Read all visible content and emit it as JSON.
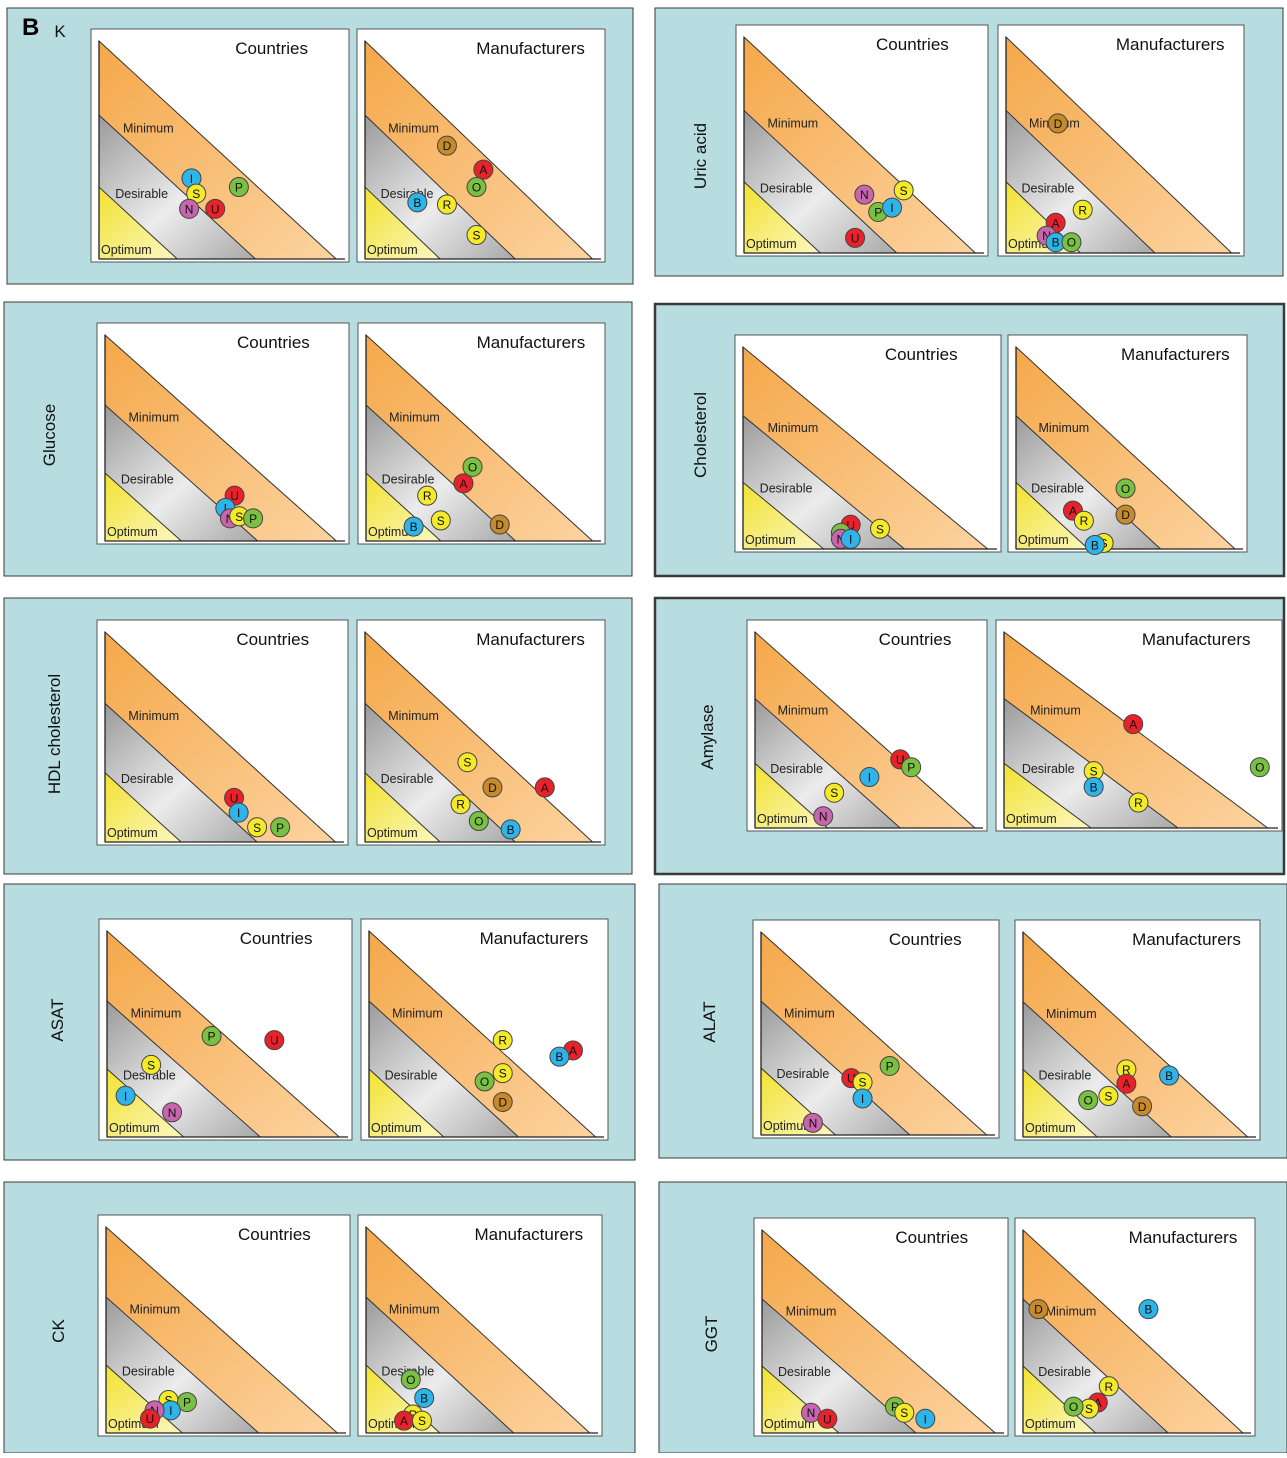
{
  "figure": {
    "label": "B"
  },
  "colors": {
    "panel_bg": "#b7dde0",
    "panel_border": "#3a3a3a",
    "zone_min": "#f8b868",
    "zone_des": "#b4b4b4",
    "zone_opt": "#f2e84e",
    "markers": {
      "U": "#e8212b",
      "A": "#e8212b",
      "I": "#2eb4e8",
      "B": "#2eb4e8",
      "P": "#7ac143",
      "O": "#7ac143",
      "S": "#f4ea2a",
      "R": "#f4ea2a",
      "N": "#c765ad",
      "D": "#c78a2a"
    }
  },
  "chart_data": [
    {
      "type": "scatter",
      "title": "K",
      "subplots": [
        {
          "title": "Countries",
          "zones": [
            "Minimum",
            "Desirable",
            "Optimum"
          ],
          "points": [
            {
              "label": "I",
              "x": 0.39,
              "y": 0.37
            },
            {
              "label": "P",
              "x": 0.59,
              "y": 0.33
            },
            {
              "label": "S",
              "x": 0.41,
              "y": 0.3
            },
            {
              "label": "N",
              "x": 0.38,
              "y": 0.23
            },
            {
              "label": "U",
              "x": 0.49,
              "y": 0.23
            }
          ]
        },
        {
          "title": "Manufacturers",
          "zones": [
            "Minimum",
            "Desirable",
            "Optimum"
          ],
          "points": [
            {
              "label": "D",
              "x": 0.36,
              "y": 0.52
            },
            {
              "label": "A",
              "x": 0.52,
              "y": 0.41
            },
            {
              "label": "O",
              "x": 0.49,
              "y": 0.33
            },
            {
              "label": "B",
              "x": 0.23,
              "y": 0.26
            },
            {
              "label": "R",
              "x": 0.36,
              "y": 0.25
            },
            {
              "label": "S",
              "x": 0.49,
              "y": 0.11
            }
          ]
        }
      ]
    },
    {
      "type": "scatter",
      "title": "Uric acid",
      "subplots": [
        {
          "title": "Countries",
          "zones": [
            "Minimum",
            "Desirable",
            "Optimum"
          ],
          "points": [
            {
              "label": "N",
              "x": 0.52,
              "y": 0.27
            },
            {
              "label": "S",
              "x": 0.69,
              "y": 0.29
            },
            {
              "label": "P",
              "x": 0.58,
              "y": 0.19
            },
            {
              "label": "I",
              "x": 0.64,
              "y": 0.21
            },
            {
              "label": "U",
              "x": 0.48,
              "y": 0.07
            }
          ]
        },
        {
          "title": "Manufacturers",
          "zones": [
            "Minimum",
            "Desirable",
            "Optimum"
          ],
          "points": [
            {
              "label": "D",
              "x": 0.23,
              "y": 0.6
            },
            {
              "label": "R",
              "x": 0.34,
              "y": 0.2
            },
            {
              "label": "A",
              "x": 0.22,
              "y": 0.14
            },
            {
              "label": "N",
              "x": 0.18,
              "y": 0.08
            },
            {
              "label": "B",
              "x": 0.22,
              "y": 0.05
            },
            {
              "label": "O",
              "x": 0.29,
              "y": 0.05
            }
          ]
        }
      ]
    },
    {
      "type": "scatter",
      "title": "Glucose",
      "subplots": [
        {
          "title": "Countries",
          "zones": [
            "Minimum",
            "Desirable",
            "Optimum"
          ],
          "points": [
            {
              "label": "U",
              "x": 0.56,
              "y": 0.22
            },
            {
              "label": "I",
              "x": 0.52,
              "y": 0.16
            },
            {
              "label": "N",
              "x": 0.54,
              "y": 0.11
            },
            {
              "label": "S",
              "x": 0.58,
              "y": 0.12
            },
            {
              "label": "P",
              "x": 0.64,
              "y": 0.11
            }
          ]
        },
        {
          "title": "Manufacturers",
          "zones": [
            "Minimum",
            "Desirable",
            "Optimum"
          ],
          "points": [
            {
              "label": "O",
              "x": 0.47,
              "y": 0.36
            },
            {
              "label": "A",
              "x": 0.43,
              "y": 0.28
            },
            {
              "label": "R",
              "x": 0.27,
              "y": 0.22
            },
            {
              "label": "S",
              "x": 0.33,
              "y": 0.1
            },
            {
              "label": "B",
              "x": 0.21,
              "y": 0.07
            },
            {
              "label": "D",
              "x": 0.59,
              "y": 0.08
            }
          ]
        }
      ]
    },
    {
      "type": "scatter",
      "title": "Cholesterol",
      "subplots": [
        {
          "title": "Countries",
          "zones": [
            "Minimum",
            "Desirable",
            "Optimum"
          ],
          "points": [
            {
              "label": "U",
              "x": 0.44,
              "y": 0.12
            },
            {
              "label": "P",
              "x": 0.4,
              "y": 0.08
            },
            {
              "label": "N",
              "x": 0.4,
              "y": 0.05
            },
            {
              "label": "I",
              "x": 0.44,
              "y": 0.05
            },
            {
              "label": "S",
              "x": 0.56,
              "y": 0.1
            }
          ]
        },
        {
          "title": "Manufacturers",
          "zones": [
            "Minimum",
            "Desirable",
            "Optimum"
          ],
          "points": [
            {
              "label": "O",
              "x": 0.5,
              "y": 0.3
            },
            {
              "label": "D",
              "x": 0.5,
              "y": 0.17
            },
            {
              "label": "A",
              "x": 0.26,
              "y": 0.19
            },
            {
              "label": "R",
              "x": 0.31,
              "y": 0.14
            },
            {
              "label": "S",
              "x": 0.4,
              "y": 0.03
            },
            {
              "label": "B",
              "x": 0.36,
              "y": 0.02
            }
          ]
        }
      ]
    },
    {
      "type": "scatter",
      "title": "HDL cholesterol",
      "subplots": [
        {
          "title": "Countries",
          "zones": [
            "Minimum",
            "Desirable",
            "Optimum"
          ],
          "points": [
            {
              "label": "U",
              "x": 0.56,
              "y": 0.21
            },
            {
              "label": "I",
              "x": 0.58,
              "y": 0.14
            },
            {
              "label": "S",
              "x": 0.66,
              "y": 0.07
            },
            {
              "label": "P",
              "x": 0.76,
              "y": 0.07
            }
          ]
        },
        {
          "title": "Manufacturers",
          "zones": [
            "Minimum",
            "Desirable",
            "Optimum"
          ],
          "points": [
            {
              "label": "S",
              "x": 0.45,
              "y": 0.38
            },
            {
              "label": "D",
              "x": 0.56,
              "y": 0.26
            },
            {
              "label": "A",
              "x": 0.79,
              "y": 0.26
            },
            {
              "label": "R",
              "x": 0.42,
              "y": 0.18
            },
            {
              "label": "O",
              "x": 0.5,
              "y": 0.1
            },
            {
              "label": "B",
              "x": 0.64,
              "y": 0.06
            }
          ]
        }
      ]
    },
    {
      "type": "scatter",
      "title": "Amylase",
      "subplots": [
        {
          "title": "Countries",
          "zones": [
            "Minimum",
            "Desirable",
            "Optimum"
          ],
          "points": [
            {
              "label": "U",
              "x": 0.66,
              "y": 0.35
            },
            {
              "label": "P",
              "x": 0.71,
              "y": 0.31
            },
            {
              "label": "I",
              "x": 0.52,
              "y": 0.26
            },
            {
              "label": "S",
              "x": 0.36,
              "y": 0.18
            },
            {
              "label": "N",
              "x": 0.31,
              "y": 0.06
            }
          ]
        },
        {
          "title": "Manufacturers",
          "zones": [
            "Minimum",
            "Desirable",
            "Optimum"
          ],
          "points": [
            {
              "label": "A",
              "x": 0.49,
              "y": 0.53
            },
            {
              "label": "O",
              "x": 0.97,
              "y": 0.31
            },
            {
              "label": "S",
              "x": 0.34,
              "y": 0.29
            },
            {
              "label": "B",
              "x": 0.34,
              "y": 0.21
            },
            {
              "label": "R",
              "x": 0.51,
              "y": 0.13
            }
          ]
        }
      ]
    },
    {
      "type": "scatter",
      "title": "ASAT",
      "subplots": [
        {
          "title": "Countries",
          "zones": [
            "Minimum",
            "Desirable",
            "Optimum"
          ],
          "points": [
            {
              "label": "P",
              "x": 0.45,
              "y": 0.49
            },
            {
              "label": "U",
              "x": 0.72,
              "y": 0.47
            },
            {
              "label": "S",
              "x": 0.19,
              "y": 0.35
            },
            {
              "label": "I",
              "x": 0.08,
              "y": 0.2
            },
            {
              "label": "N",
              "x": 0.28,
              "y": 0.12
            }
          ]
        },
        {
          "title": "Manufacturers",
          "zones": [
            "Minimum",
            "Desirable",
            "Optimum"
          ],
          "points": [
            {
              "label": "R",
              "x": 0.59,
              "y": 0.47
            },
            {
              "label": "A",
              "x": 0.9,
              "y": 0.42
            },
            {
              "label": "B",
              "x": 0.84,
              "y": 0.39
            },
            {
              "label": "S",
              "x": 0.59,
              "y": 0.31
            },
            {
              "label": "O",
              "x": 0.51,
              "y": 0.27
            },
            {
              "label": "D",
              "x": 0.59,
              "y": 0.17
            }
          ]
        }
      ]
    },
    {
      "type": "scatter",
      "title": "ALAT",
      "subplots": [
        {
          "title": "Countries",
          "zones": [
            "Minimum",
            "Desirable",
            "Optimum"
          ],
          "points": [
            {
              "label": "P",
              "x": 0.57,
              "y": 0.34
            },
            {
              "label": "U",
              "x": 0.4,
              "y": 0.28
            },
            {
              "label": "S",
              "x": 0.45,
              "y": 0.26
            },
            {
              "label": "I",
              "x": 0.45,
              "y": 0.18
            },
            {
              "label": "N",
              "x": 0.23,
              "y": 0.06
            }
          ]
        },
        {
          "title": "Manufacturers",
          "zones": [
            "Minimum",
            "Desirable",
            "Optimum"
          ],
          "points": [
            {
              "label": "R",
              "x": 0.46,
              "y": 0.33
            },
            {
              "label": "B",
              "x": 0.65,
              "y": 0.3
            },
            {
              "label": "A",
              "x": 0.46,
              "y": 0.26
            },
            {
              "label": "S",
              "x": 0.38,
              "y": 0.2
            },
            {
              "label": "O",
              "x": 0.29,
              "y": 0.18
            },
            {
              "label": "D",
              "x": 0.53,
              "y": 0.15
            }
          ]
        }
      ]
    },
    {
      "type": "scatter",
      "title": "CK",
      "subplots": [
        {
          "title": "Countries",
          "zones": [
            "Minimum",
            "Desirable",
            "Optimum"
          ],
          "points": [
            {
              "label": "S",
              "x": 0.27,
              "y": 0.16
            },
            {
              "label": "P",
              "x": 0.35,
              "y": 0.15
            },
            {
              "label": "I",
              "x": 0.28,
              "y": 0.11
            },
            {
              "label": "N",
              "x": 0.21,
              "y": 0.11
            },
            {
              "label": "U",
              "x": 0.19,
              "y": 0.07
            }
          ]
        },
        {
          "title": "Manufacturers",
          "zones": [
            "Minimum",
            "Desirable",
            "Optimum"
          ],
          "points": [
            {
              "label": "O",
              "x": 0.2,
              "y": 0.26
            },
            {
              "label": "B",
              "x": 0.26,
              "y": 0.17
            },
            {
              "label": "R",
              "x": 0.21,
              "y": 0.09
            },
            {
              "label": "A",
              "x": 0.17,
              "y": 0.06
            },
            {
              "label": "S",
              "x": 0.25,
              "y": 0.06
            }
          ]
        }
      ]
    },
    {
      "type": "scatter",
      "title": "GGT",
      "subplots": [
        {
          "title": "Countries",
          "zones": [
            "Minimum",
            "Desirable",
            "Optimum"
          ],
          "points": [
            {
              "label": "P",
              "x": 0.57,
              "y": 0.13
            },
            {
              "label": "S",
              "x": 0.61,
              "y": 0.1
            },
            {
              "label": "I",
              "x": 0.7,
              "y": 0.07
            },
            {
              "label": "N",
              "x": 0.21,
              "y": 0.1
            },
            {
              "label": "U",
              "x": 0.28,
              "y": 0.07
            }
          ]
        },
        {
          "title": "Manufacturers",
          "zones": [
            "Minimum",
            "Desirable",
            "Optimum"
          ],
          "points": [
            {
              "label": "D",
              "x": 0.07,
              "y": 0.61
            },
            {
              "label": "B",
              "x": 0.57,
              "y": 0.61
            },
            {
              "label": "R",
              "x": 0.39,
              "y": 0.23
            },
            {
              "label": "A",
              "x": 0.34,
              "y": 0.15
            },
            {
              "label": "S",
              "x": 0.3,
              "y": 0.12
            },
            {
              "label": "O",
              "x": 0.23,
              "y": 0.13
            }
          ]
        }
      ]
    }
  ]
}
